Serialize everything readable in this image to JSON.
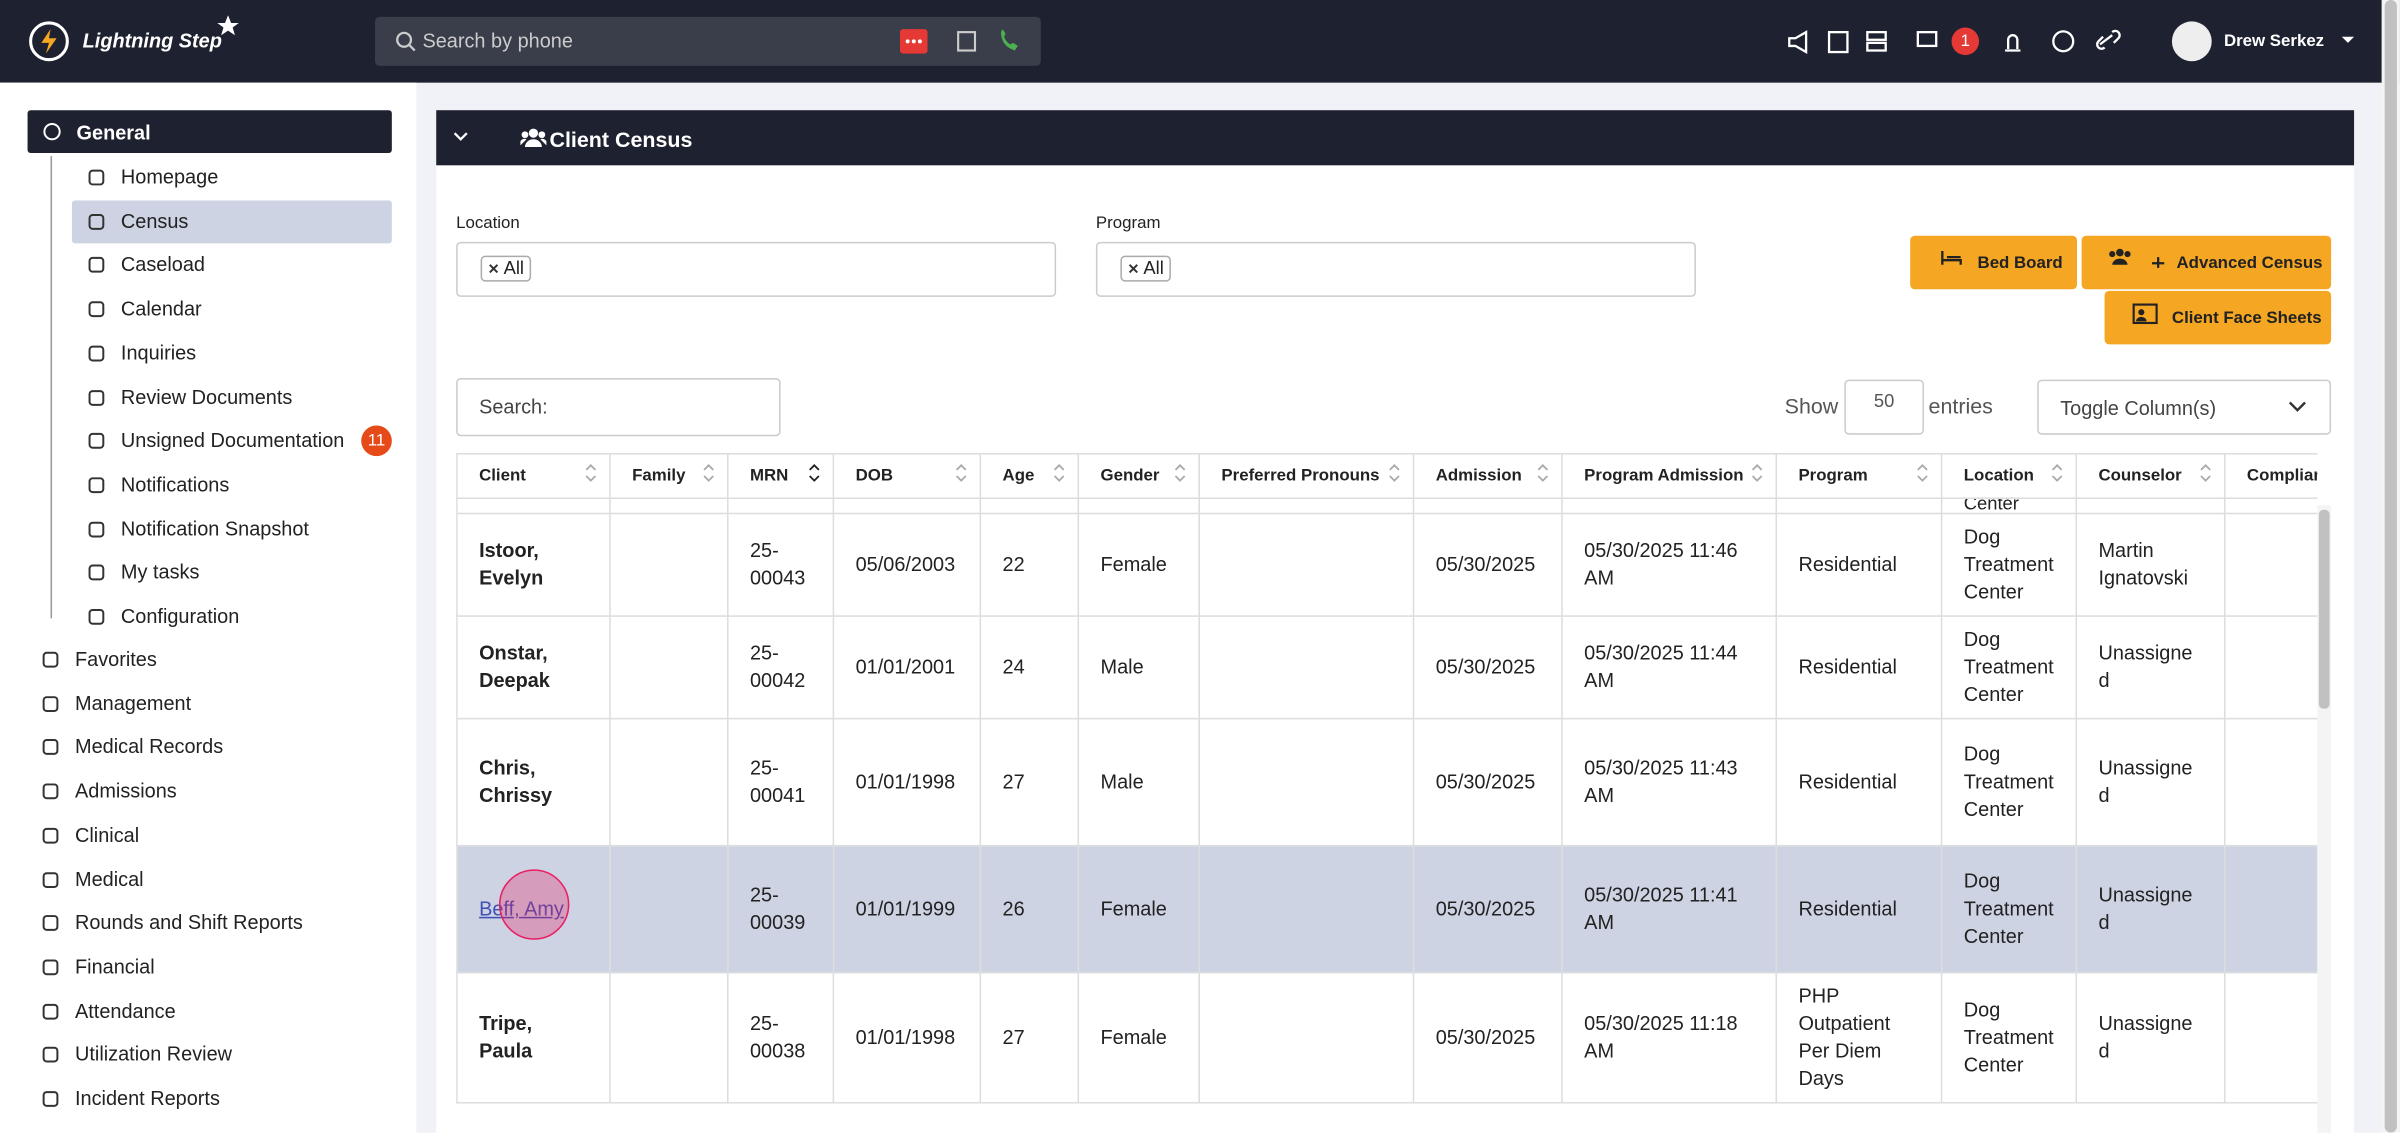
{
  "header": {
    "brand": "Lightning Step",
    "search_placeholder": "Search by phone",
    "chat_badge": "1",
    "user": "Drew Serkez"
  },
  "sidebar": {
    "section": "General",
    "items": [
      {
        "label": "Homepage"
      },
      {
        "label": "Census",
        "active": true
      },
      {
        "label": "Caseload"
      },
      {
        "label": "Calendar"
      },
      {
        "label": "Inquiries"
      },
      {
        "label": "Review Documents"
      },
      {
        "label": "Unsigned Documentation",
        "badge": "11"
      },
      {
        "label": "Notifications"
      },
      {
        "label": "Notification Snapshot"
      },
      {
        "label": "My tasks"
      },
      {
        "label": "Configuration"
      }
    ],
    "groups": [
      "Favorites",
      "Management",
      "Medical Records",
      "Admissions",
      "Clinical",
      "Medical",
      "Rounds and Shift Reports",
      "Financial",
      "Attendance",
      "Utilization Review",
      "Incident Reports"
    ]
  },
  "panel": {
    "title": "Client Census",
    "location_label": "Location",
    "location_value": "All",
    "program_label": "Program",
    "program_value": "All",
    "buttons": [
      "Bed Board",
      "Advanced Census",
      "Client Face Sheets"
    ],
    "search_placeholder": "Search:",
    "show_label": "Show",
    "entries_value": "50",
    "entries_label": "entries",
    "toggle": "Toggle Column(s)"
  },
  "table": {
    "columns": [
      "Client",
      "Family",
      "MRN",
      "DOB",
      "Age",
      "Gender",
      "Preferred Pronouns",
      "Admission",
      "Program Admission",
      "Program",
      "Location",
      "Counselor",
      "Complian"
    ],
    "partial_location": "Center",
    "rows": [
      [
        "Istoor, Evelyn",
        "",
        "25-00043",
        "05/06/2003",
        "22",
        "Female",
        "",
        "05/30/2025",
        "05/30/2025 11:46 AM",
        "Residential",
        "Dog Treatment Center",
        "Martin Ignatovski",
        ""
      ],
      [
        "Onstar, Deepak",
        "",
        "25-00042",
        "01/01/2001",
        "24",
        "Male",
        "",
        "05/30/2025",
        "05/30/2025 11:44 AM",
        "Residential",
        "Dog Treatment Center",
        "Unassigned",
        ""
      ],
      [
        "Chris, Chrissy",
        "",
        "25-00041",
        "01/01/1998",
        "27",
        "Male",
        "",
        "05/30/2025",
        "05/30/2025 11:43 AM",
        "Residential",
        "Dog Treatment Center",
        "Unassigned",
        ""
      ],
      [
        "Beff, Amy",
        "",
        "25-00039",
        "01/01/1999",
        "26",
        "Female",
        "",
        "05/30/2025",
        "05/30/2025 11:41 AM",
        "Residential",
        "Dog Treatment Center",
        "Unassigned",
        ""
      ],
      [
        "Tripe, Paula",
        "",
        "25-00038",
        "01/01/1998",
        "27",
        "Female",
        "",
        "05/30/2025",
        "05/30/2025 11:18 AM",
        "PHP Outpatient Per Diem Days",
        "Dog Treatment Center",
        "Unassigned",
        ""
      ]
    ],
    "highlight_row": 3
  }
}
